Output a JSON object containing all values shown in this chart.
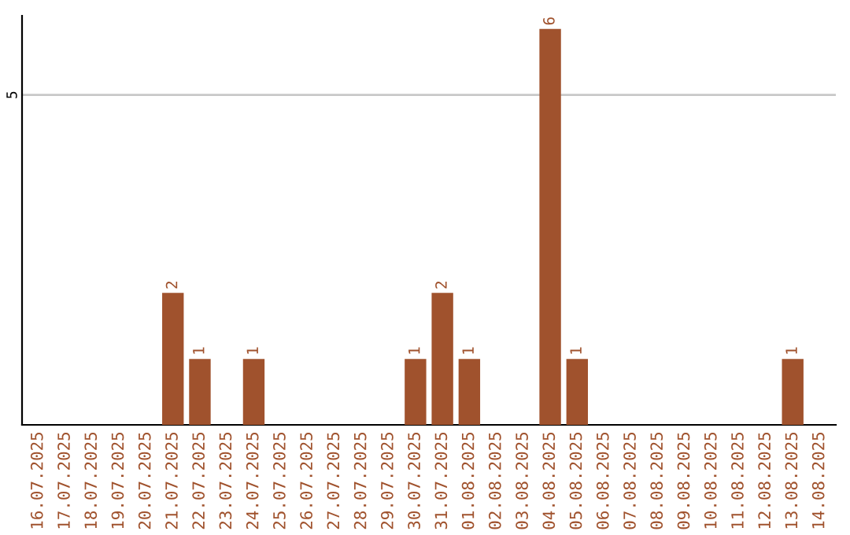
{
  "chart_data": {
    "type": "bar",
    "categories": [
      "16.07.2025",
      "17.07.2025",
      "18.07.2025",
      "19.07.2025",
      "20.07.2025",
      "21.07.2025",
      "22.07.2025",
      "23.07.2025",
      "24.07.2025",
      "25.07.2025",
      "26.07.2025",
      "27.07.2025",
      "28.07.2025",
      "29.07.2025",
      "30.07.2025",
      "31.07.2025",
      "01.08.2025",
      "02.08.2025",
      "03.08.2025",
      "04.08.2025",
      "05.08.2025",
      "06.08.2025",
      "07.08.2025",
      "08.08.2025",
      "09.08.2025",
      "10.08.2025",
      "11.08.2025",
      "12.08.2025",
      "13.08.2025",
      "14.08.2025"
    ],
    "values": [
      0,
      0,
      0,
      0,
      0,
      2,
      1,
      0,
      1,
      0,
      0,
      0,
      0,
      0,
      1,
      2,
      1,
      0,
      0,
      6,
      1,
      0,
      0,
      0,
      0,
      0,
      0,
      0,
      1,
      0
    ],
    "value_labels": [
      null,
      null,
      null,
      null,
      null,
      "2",
      "1",
      null,
      "1",
      null,
      null,
      null,
      null,
      null,
      "1",
      "2",
      "1",
      null,
      null,
      "6",
      "1",
      null,
      null,
      null,
      null,
      null,
      null,
      null,
      "1",
      null
    ],
    "color": "#a0522d",
    "ylim": [
      0,
      6.2
    ],
    "yticks": [
      5
    ],
    "grid": "y"
  }
}
